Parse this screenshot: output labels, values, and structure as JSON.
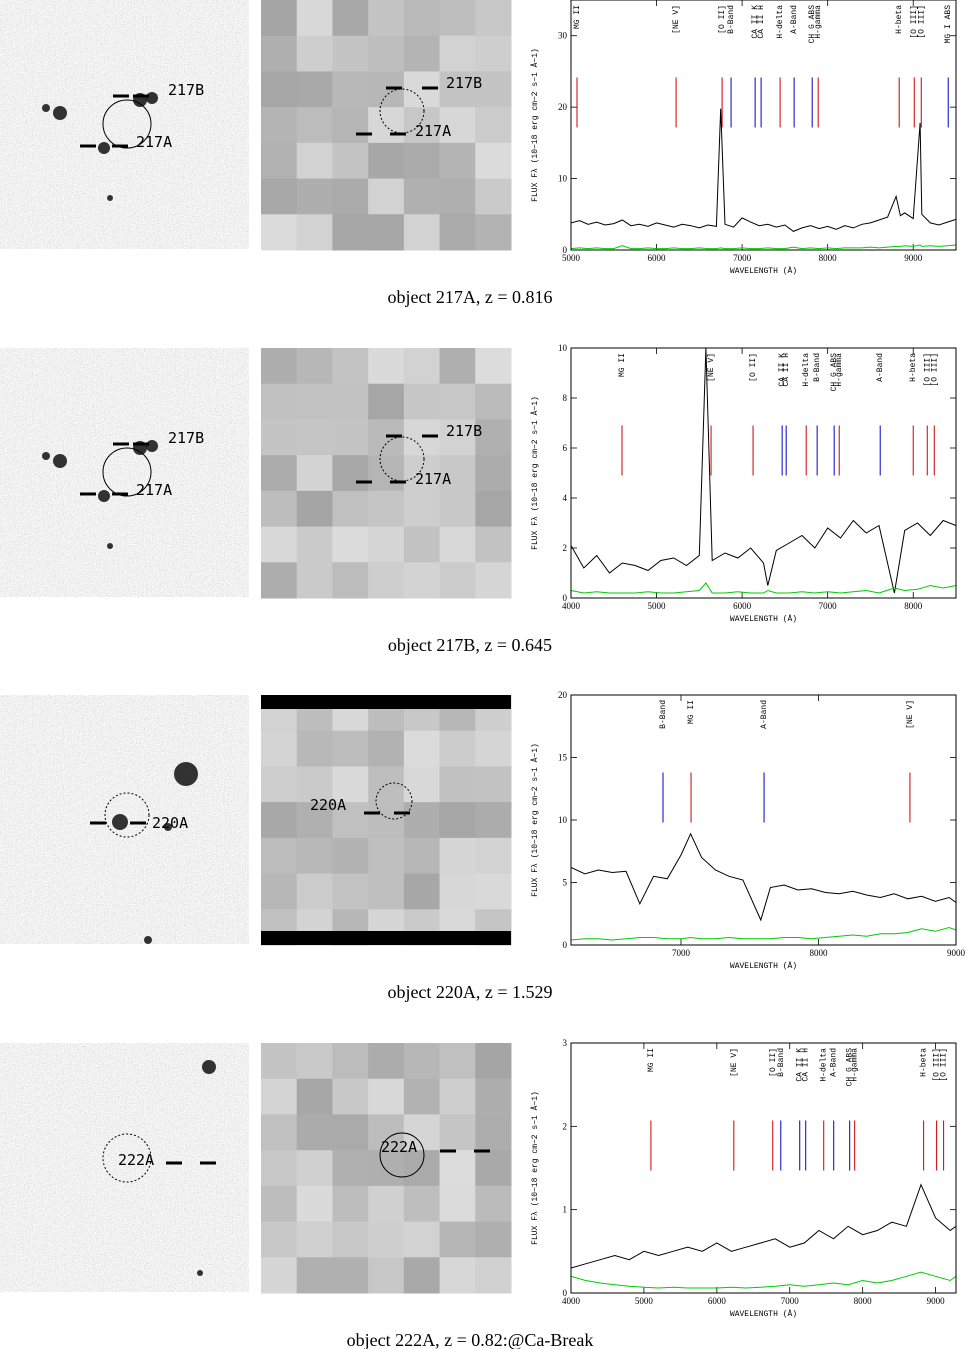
{
  "chart_data": [
    {
      "type": "line",
      "caption": "object 217A, z = 0.816",
      "image_labels": {
        "left": [
          "217B",
          "217A"
        ],
        "right": [
          "217B",
          "217A"
        ]
      },
      "xlabel": "WAVELENGTH (Å)",
      "ylabel": "FLUX Fλ (10−18 erg cm−2 s−1 Å−1)",
      "xlim": [
        5000,
        9500
      ],
      "ylim": [
        0,
        35
      ],
      "xticks": [
        5000,
        6000,
        7000,
        8000,
        9000
      ],
      "yticks": [
        0,
        10,
        20,
        30
      ],
      "x": [
        5000,
        5100,
        5200,
        5300,
        5400,
        5500,
        5600,
        5700,
        5800,
        5900,
        6000,
        6100,
        6200,
        6300,
        6400,
        6500,
        6600,
        6700,
        6750,
        6800,
        6900,
        7000,
        7100,
        7200,
        7300,
        7400,
        7500,
        7600,
        7700,
        7800,
        7900,
        8000,
        8100,
        8200,
        8300,
        8400,
        8500,
        8600,
        8700,
        8800,
        8850,
        8900,
        9000,
        9080,
        9100,
        9200,
        9300,
        9400,
        9500
      ],
      "series": [
        {
          "color": "#000000",
          "values": [
            3.8,
            4.1,
            3.6,
            3.9,
            3.5,
            3.7,
            4.2,
            3.4,
            3.6,
            3.3,
            3.8,
            3.5,
            3.2,
            3.6,
            3.4,
            3.1,
            3.5,
            3.3,
            19.8,
            3.6,
            3.2,
            4.5,
            3.9,
            3.4,
            3.6,
            3.2,
            3.5,
            2.6,
            3.1,
            3.4,
            3.0,
            3.3,
            2.9,
            3.4,
            3.1,
            3.6,
            3.8,
            4.2,
            4.6,
            7.5,
            4.8,
            5.2,
            4.4,
            17.8,
            5.0,
            3.8,
            3.5,
            3.9,
            4.3
          ]
        },
        {
          "color": "#00cc00",
          "values": [
            0.2,
            0.3,
            0.2,
            0.3,
            0.2,
            0.2,
            0.6,
            0.2,
            0.2,
            0.3,
            0.2,
            0.2,
            0.3,
            0.2,
            0.2,
            0.3,
            0.2,
            0.2,
            0.3,
            0.2,
            0.2,
            0.3,
            0.2,
            0.2,
            0.3,
            0.2,
            0.2,
            0.4,
            0.2,
            0.3,
            0.2,
            0.3,
            0.2,
            0.3,
            0.3,
            0.3,
            0.4,
            0.3,
            0.4,
            0.5,
            0.5,
            0.6,
            0.5,
            0.7,
            0.5,
            0.6,
            0.5,
            0.6,
            0.7
          ]
        }
      ],
      "lines": [
        {
          "label": "MG II",
          "x": 5070,
          "color": "#cc0000"
        },
        {
          "label": "[NE V]",
          "x": 6228,
          "color": "#cc0000"
        },
        {
          "label": "[O II]",
          "x": 6766,
          "color": "#cc0000"
        },
        {
          "label": "B-Band",
          "x": 6871,
          "color": "#0000cc"
        },
        {
          "label": "CA II K",
          "x": 7152,
          "color": "#0000cc"
        },
        {
          "label": "CA II H",
          "x": 7222,
          "color": "#0000cc"
        },
        {
          "label": "H-delta",
          "x": 7444,
          "color": "#cc0000"
        },
        {
          "label": "A-Band",
          "x": 7608,
          "color": "#0000cc"
        },
        {
          "label": "CH G ABS",
          "x": 7819,
          "color": "#0000cc"
        },
        {
          "label": "H-gamma",
          "x": 7889,
          "color": "#cc0000"
        },
        {
          "label": "H-beta",
          "x": 8836,
          "color": "#cc0000"
        },
        {
          "label": "[O III]",
          "x": 9012,
          "color": "#cc0000"
        },
        {
          "label": "[O III]",
          "x": 9094,
          "color": "#cc0000"
        },
        {
          "label": "MG I ABS",
          "x": 9409,
          "color": "#0000cc"
        }
      ]
    },
    {
      "type": "line",
      "caption": "object 217B, z = 0.645",
      "image_labels": {
        "left": [
          "217B",
          "217A"
        ],
        "right": [
          "217B",
          "217A"
        ]
      },
      "xlabel": "WAVELENGTH (Å)",
      "ylabel": "FLUX Fλ (10−18 erg cm−2 s−1 Å−1)",
      "xlim": [
        4000,
        8500
      ],
      "ylim": [
        0,
        10
      ],
      "xticks": [
        4000,
        5000,
        6000,
        7000,
        8000
      ],
      "yticks": [
        0,
        2,
        4,
        6,
        8,
        10
      ],
      "x": [
        4000,
        4150,
        4300,
        4450,
        4600,
        4750,
        4900,
        5050,
        5200,
        5350,
        5500,
        5577,
        5650,
        5800,
        5950,
        6100,
        6250,
        6300,
        6400,
        6550,
        6700,
        6850,
        7000,
        7150,
        7300,
        7450,
        7600,
        7780,
        7900,
        8050,
        8200,
        8350,
        8500
      ],
      "series": [
        {
          "color": "#000000",
          "values": [
            2.1,
            1.2,
            1.7,
            1.0,
            1.4,
            1.3,
            1.1,
            1.5,
            1.6,
            1.3,
            1.7,
            10,
            1.5,
            1.8,
            1.6,
            2.0,
            1.4,
            0.5,
            1.9,
            2.2,
            2.5,
            2.0,
            2.8,
            2.4,
            3.1,
            2.6,
            2.9,
            0.2,
            2.7,
            3.0,
            2.5,
            3.1,
            2.9
          ]
        },
        {
          "color": "#00cc00",
          "values": [
            0.3,
            0.2,
            0.25,
            0.2,
            0.2,
            0.2,
            0.25,
            0.2,
            0.2,
            0.25,
            0.3,
            0.6,
            0.2,
            0.2,
            0.25,
            0.2,
            0.2,
            0.3,
            0.2,
            0.2,
            0.25,
            0.2,
            0.25,
            0.2,
            0.25,
            0.3,
            0.2,
            0.4,
            0.3,
            0.35,
            0.5,
            0.4,
            0.5
          ]
        }
      ],
      "lines": [
        {
          "label": "MG II",
          "x": 4596,
          "color": "#cc0000"
        },
        {
          "label": "[NE V]",
          "x": 5637,
          "color": "#cc0000"
        },
        {
          "label": "[O II]",
          "x": 6128,
          "color": "#cc0000"
        },
        {
          "label": "CA II K",
          "x": 6468,
          "color": "#0000cc"
        },
        {
          "label": "CA II H",
          "x": 6515,
          "color": "#0000cc"
        },
        {
          "label": "H-delta",
          "x": 6749,
          "color": "#cc0000"
        },
        {
          "label": "B-Band",
          "x": 6877,
          "color": "#0000cc"
        },
        {
          "label": "CH G ABS",
          "x": 7076,
          "color": "#0000cc"
        },
        {
          "label": "H-gamma",
          "x": 7135,
          "color": "#cc0000"
        },
        {
          "label": "A-Band",
          "x": 7614,
          "color": "#0000cc"
        },
        {
          "label": "H-beta",
          "x": 8000,
          "color": "#cc0000"
        },
        {
          "label": "[O III]",
          "x": 8164,
          "color": "#cc0000"
        },
        {
          "label": "[O III]",
          "x": 8246,
          "color": "#cc0000"
        }
      ]
    },
    {
      "type": "line",
      "caption": "object 220A, z = 1.529",
      "image_labels": {
        "left": [
          "220A"
        ],
        "right": [
          "220A"
        ]
      },
      "xlabel": "WAVELENGTH (Å)",
      "ylabel": "FLUX Fλ (10−18 erg cm−2 s−1 Å−1)",
      "xlim": [
        6200,
        9000
      ],
      "ylim": [
        0,
        20
      ],
      "xticks": [
        7000,
        8000,
        9000
      ],
      "yticks": [
        0,
        5,
        10,
        15,
        20
      ],
      "x": [
        6200,
        6300,
        6400,
        6500,
        6600,
        6700,
        6800,
        6900,
        7000,
        7070,
        7150,
        7250,
        7350,
        7450,
        7580,
        7650,
        7750,
        7850,
        7950,
        8050,
        8150,
        8250,
        8350,
        8450,
        8550,
        8650,
        8750,
        8850,
        8950,
        9000
      ],
      "series": [
        {
          "color": "#000000",
          "values": [
            6.2,
            5.7,
            6.0,
            5.8,
            5.9,
            3.3,
            5.5,
            5.3,
            7.2,
            8.9,
            7.0,
            6.0,
            5.5,
            5.2,
            2.0,
            4.6,
            4.8,
            4.4,
            4.5,
            4.2,
            4.1,
            4.3,
            4.0,
            3.8,
            4.1,
            3.7,
            3.9,
            3.5,
            3.8,
            3.4
          ]
        },
        {
          "color": "#00cc00",
          "values": [
            0.4,
            0.5,
            0.5,
            0.4,
            0.5,
            0.6,
            0.6,
            0.5,
            0.5,
            0.6,
            0.5,
            0.5,
            0.6,
            0.5,
            0.5,
            0.5,
            0.6,
            0.6,
            0.5,
            0.6,
            0.7,
            0.8,
            0.7,
            0.9,
            0.9,
            1.0,
            1.3,
            1.1,
            1.4,
            1.2
          ]
        }
      ],
      "lines": [
        {
          "label": "B-Band",
          "x": 6869,
          "color": "#0000cc"
        },
        {
          "label": "MG II",
          "x": 7073,
          "color": "#cc0000"
        },
        {
          "label": "A-Band",
          "x": 7604,
          "color": "#0000cc"
        },
        {
          "label": "[NE V]",
          "x": 8665,
          "color": "#cc0000"
        }
      ]
    },
    {
      "type": "line",
      "caption": "object 222A, z = 0.82:@Ca-Break",
      "image_labels": {
        "left": [
          "222A"
        ],
        "right": [
          "222A"
        ]
      },
      "xlabel": "WAVELENGTH (Å)",
      "ylabel": "FLUX Fλ (10−18 erg cm−2 s−1 Å−1)",
      "xlim": [
        4000,
        9280
      ],
      "ylim": [
        0,
        3
      ],
      "xticks": [
        4000,
        5000,
        6000,
        7000,
        8000,
        9000
      ],
      "yticks": [
        0,
        1,
        2,
        3
      ],
      "x": [
        4000,
        4200,
        4400,
        4600,
        4800,
        5000,
        5200,
        5400,
        5600,
        5800,
        6000,
        6200,
        6400,
        6600,
        6800,
        7000,
        7200,
        7400,
        7600,
        7800,
        8000,
        8200,
        8400,
        8600,
        8800,
        9000,
        9200,
        9280
      ],
      "series": [
        {
          "color": "#000000",
          "values": [
            0.3,
            0.35,
            0.4,
            0.45,
            0.4,
            0.5,
            0.45,
            0.5,
            0.55,
            0.5,
            0.6,
            0.5,
            0.55,
            0.6,
            0.65,
            0.55,
            0.6,
            0.75,
            0.65,
            0.8,
            0.7,
            0.75,
            0.85,
            0.8,
            1.3,
            0.9,
            0.75,
            0.8
          ]
        },
        {
          "color": "#00cc00",
          "values": [
            0.2,
            0.15,
            0.12,
            0.1,
            0.08,
            0.07,
            0.06,
            0.07,
            0.06,
            0.06,
            0.06,
            0.07,
            0.06,
            0.07,
            0.08,
            0.1,
            0.08,
            0.1,
            0.12,
            0.1,
            0.15,
            0.12,
            0.15,
            0.2,
            0.25,
            0.2,
            0.15,
            0.2
          ]
        }
      ],
      "lines": [
        {
          "label": "MG II",
          "x": 5096,
          "color": "#cc0000"
        },
        {
          "label": "[NE V]",
          "x": 6233,
          "color": "#cc0000"
        },
        {
          "label": "[O II]",
          "x": 6767,
          "color": "#cc0000"
        },
        {
          "label": "B-Band",
          "x": 6877,
          "color": "#0000cc"
        },
        {
          "label": "CA II K",
          "x": 7137,
          "color": "#0000cc"
        },
        {
          "label": "CA II H",
          "x": 7219,
          "color": "#0000cc"
        },
        {
          "label": "H-delta",
          "x": 7466,
          "color": "#cc0000"
        },
        {
          "label": "A-Band",
          "x": 7603,
          "color": "#0000cc"
        },
        {
          "label": "CH G ABS",
          "x": 7822,
          "color": "#0000cc"
        },
        {
          "label": "H-gamma",
          "x": 7890,
          "color": "#cc0000"
        },
        {
          "label": "H-beta",
          "x": 8836,
          "color": "#cc0000"
        },
        {
          "label": "[O III]",
          "x": 9014,
          "color": "#cc0000"
        },
        {
          "label": "[O III]",
          "x": 9110,
          "color": "#cc0000"
        }
      ]
    }
  ]
}
